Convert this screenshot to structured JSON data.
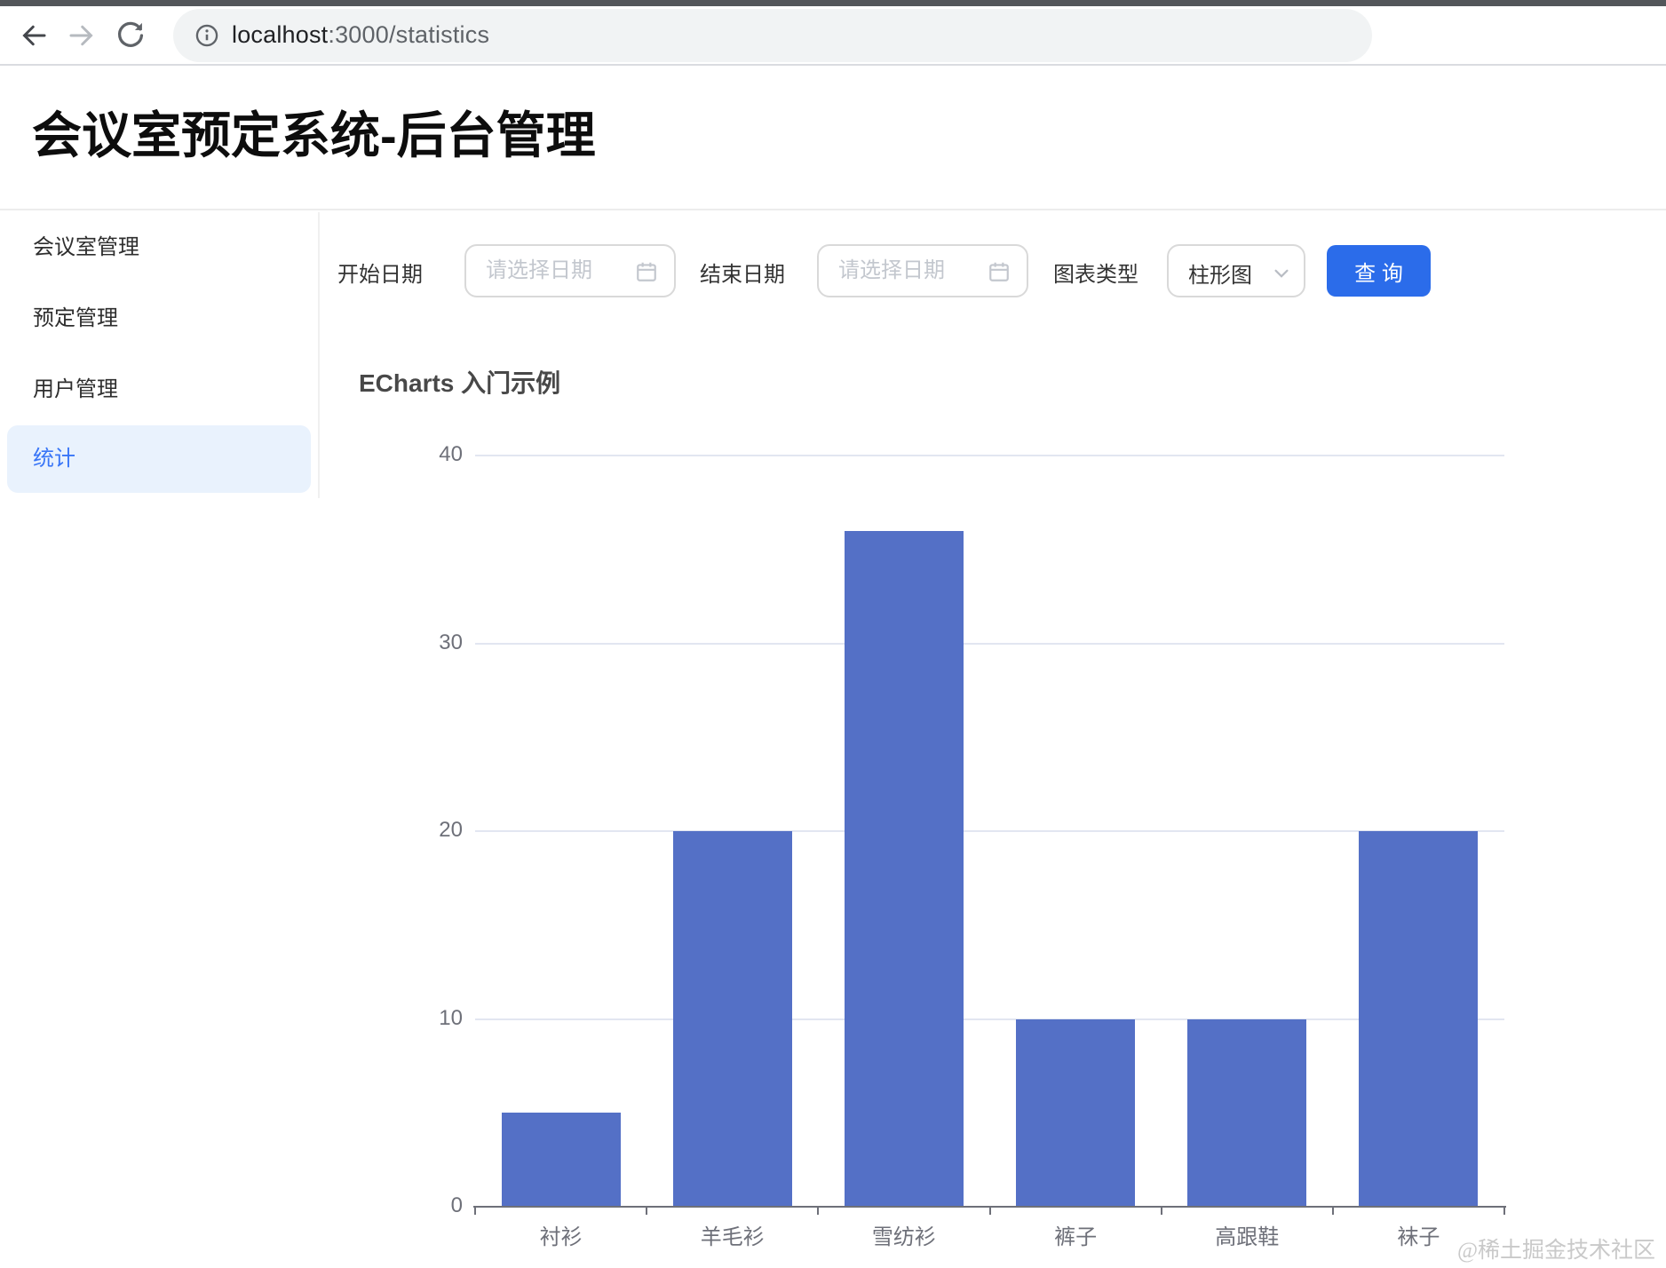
{
  "browser": {
    "url_host": "localhost",
    "url_rest": ":3000/statistics"
  },
  "header": {
    "title": "会议室预定系统-后台管理"
  },
  "sidebar": {
    "items": [
      {
        "label": "会议室管理",
        "active": false
      },
      {
        "label": "预定管理",
        "active": false
      },
      {
        "label": "用户管理",
        "active": false
      },
      {
        "label": "统计",
        "active": true
      }
    ]
  },
  "filters": {
    "start_date_label": "开始日期",
    "end_date_label": "结束日期",
    "date_placeholder": "请选择日期",
    "chart_type_label": "图表类型",
    "chart_type_value": "柱形图",
    "query_button": "查 询"
  },
  "chart_data": {
    "type": "bar",
    "title": "ECharts 入门示例",
    "categories": [
      "衬衫",
      "羊毛衫",
      "雪纺衫",
      "裤子",
      "高跟鞋",
      "袜子"
    ],
    "values": [
      5,
      20,
      36,
      10,
      10,
      20
    ],
    "xlabel": "",
    "ylabel": "",
    "ylim": [
      0,
      40
    ],
    "yticks": [
      0,
      10,
      20,
      30,
      40
    ],
    "grid": true,
    "legend": false,
    "bar_color": "#5470c6"
  },
  "watermark": "@稀土掘金技术社区",
  "colors": {
    "accent": "#2b6cea",
    "sidebar_active_bg": "#e9f2fd",
    "sidebar_active_fg": "#3875f7",
    "bar": "#5470c6",
    "axis_text": "#6E7079",
    "gridline": "#e2e6f1"
  }
}
